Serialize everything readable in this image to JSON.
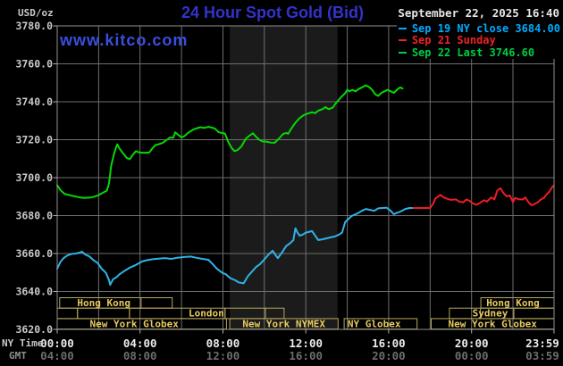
{
  "header": {
    "unit_label": "USD/oz",
    "title": "24 Hour Spot Gold (Bid)",
    "datetime": "September 22, 2025 16:40",
    "watermark": "www.kitco.com"
  },
  "legend": [
    {
      "id": "sep19",
      "label": "Sep 19 NY close 3684.00",
      "color": "#00aaff"
    },
    {
      "id": "sep21",
      "label": "Sep 21 Sunday",
      "color": "#ee2222"
    },
    {
      "id": "sep22",
      "label": "Sep 22 Last 3746.60",
      "color": "#00cc44"
    }
  ],
  "axes": {
    "ny_label": "NY Time",
    "gmt_label": "GMT",
    "y_tick_labels": [
      "3780.0",
      "3760.0",
      "3740.0",
      "3720.0",
      "3700.0",
      "3680.0",
      "3660.0",
      "3640.0",
      "3620.0"
    ]
  },
  "colors": {
    "band": "#1b1b1b",
    "grid": "#6e6e6e",
    "frame": "#8f8f8f",
    "tick": "#b0b0b0",
    "session_border": "#b5a75c",
    "session_text": "#e6cb5f"
  },
  "chart_data": {
    "type": "line",
    "title": "24 Hour Spot Gold (Bid)",
    "ylabel": "USD/oz",
    "ylim": [
      3620,
      3780
    ],
    "xlim": [
      0,
      23.983
    ],
    "x_unit": "hours, NY time",
    "grid": true,
    "legend_position": "top-right",
    "nymex_band_hours": [
      8.33,
      13.53
    ],
    "x_ticks": [
      {
        "t": 0,
        "ny": "00:00",
        "gmt": "04:00"
      },
      {
        "t": 4,
        "ny": "04:00",
        "gmt": "08:00"
      },
      {
        "t": 8,
        "ny": "08:00",
        "gmt": "12:00"
      },
      {
        "t": 12,
        "ny": "12:00",
        "gmt": "16:00"
      },
      {
        "t": 16,
        "ny": "16:00",
        "gmt": "20:00"
      },
      {
        "t": 20,
        "ny": "20:00",
        "gmt": "00:00"
      },
      {
        "t": 23.983,
        "ny": "23:59",
        "gmt": "03:59",
        "lx": 607
      }
    ],
    "series": [
      {
        "id": "sep19",
        "name": "Sep 19 NY close 3684.00",
        "color": "#2fb3e8",
        "points": [
          [
            0,
            3652
          ],
          [
            0.15,
            3655.5
          ],
          [
            0.3,
            3657.5
          ],
          [
            0.5,
            3659
          ],
          [
            0.7,
            3659.8
          ],
          [
            0.9,
            3660
          ],
          [
            1.1,
            3660.5
          ],
          [
            1.2,
            3661
          ],
          [
            1.35,
            3659.5
          ],
          [
            1.55,
            3658.5
          ],
          [
            1.75,
            3656.5
          ],
          [
            1.95,
            3655
          ],
          [
            2.15,
            3652
          ],
          [
            2.35,
            3649.8
          ],
          [
            2.5,
            3646
          ],
          [
            2.56,
            3643.5
          ],
          [
            2.7,
            3646.5
          ],
          [
            2.85,
            3647.4
          ],
          [
            3.0,
            3649
          ],
          [
            3.2,
            3650.5
          ],
          [
            3.5,
            3652.5
          ],
          [
            3.8,
            3654
          ],
          [
            4.1,
            3655.8
          ],
          [
            4.35,
            3656.5
          ],
          [
            4.6,
            3657
          ],
          [
            4.9,
            3657.3
          ],
          [
            5.2,
            3657.6
          ],
          [
            5.5,
            3657.2
          ],
          [
            5.8,
            3657.8
          ],
          [
            6.0,
            3658
          ],
          [
            6.2,
            3658.2
          ],
          [
            6.45,
            3658.4
          ],
          [
            6.7,
            3657.8
          ],
          [
            7.0,
            3657.2
          ],
          [
            7.3,
            3656.7
          ],
          [
            7.5,
            3654.5
          ],
          [
            7.7,
            3652.1
          ],
          [
            7.95,
            3650
          ],
          [
            8.15,
            3649
          ],
          [
            8.35,
            3647
          ],
          [
            8.6,
            3645.9
          ],
          [
            8.75,
            3644.8
          ],
          [
            9.0,
            3644.3
          ],
          [
            9.2,
            3648
          ],
          [
            9.6,
            3652.9
          ],
          [
            9.8,
            3654.5
          ],
          [
            10.0,
            3656.9
          ],
          [
            10.2,
            3659.5
          ],
          [
            10.4,
            3661.5
          ],
          [
            10.55,
            3659
          ],
          [
            10.65,
            3657.6
          ],
          [
            10.85,
            3660.5
          ],
          [
            11.05,
            3663.9
          ],
          [
            11.25,
            3665.5
          ],
          [
            11.4,
            3667.1
          ],
          [
            11.5,
            3673.3
          ],
          [
            11.6,
            3671
          ],
          [
            11.7,
            3669.4
          ],
          [
            11.85,
            3670
          ],
          [
            12.0,
            3671
          ],
          [
            12.3,
            3671.8
          ],
          [
            12.45,
            3669.5
          ],
          [
            12.6,
            3667.1
          ],
          [
            12.8,
            3667.5
          ],
          [
            13.0,
            3668
          ],
          [
            13.2,
            3668.5
          ],
          [
            13.4,
            3669
          ],
          [
            13.6,
            3670
          ],
          [
            13.75,
            3671
          ],
          [
            13.9,
            3676.5
          ],
          [
            14.2,
            3679.7
          ],
          [
            14.5,
            3681.2
          ],
          [
            14.7,
            3682.5
          ],
          [
            14.9,
            3683.5
          ],
          [
            15.1,
            3683
          ],
          [
            15.3,
            3682.5
          ],
          [
            15.5,
            3683.8
          ],
          [
            15.9,
            3684.2
          ],
          [
            16.1,
            3682.5
          ],
          [
            16.25,
            3680.7
          ],
          [
            16.4,
            3681.5
          ],
          [
            16.55,
            3682
          ],
          [
            16.8,
            3683.5
          ],
          [
            17.0,
            3684
          ],
          [
            17.2,
            3684
          ]
        ]
      },
      {
        "id": "sep21",
        "name": "Sep 21 Sunday",
        "color": "#ed1c24",
        "points": [
          [
            17.2,
            3684
          ],
          [
            18.0,
            3684
          ],
          [
            18.1,
            3685.5
          ],
          [
            18.15,
            3686.2
          ],
          [
            18.25,
            3689
          ],
          [
            18.5,
            3690.9
          ],
          [
            18.65,
            3689.6
          ],
          [
            18.8,
            3689
          ],
          [
            19.0,
            3688.3
          ],
          [
            19.25,
            3688.5
          ],
          [
            19.4,
            3687.4
          ],
          [
            19.6,
            3687
          ],
          [
            19.75,
            3688.5
          ],
          [
            19.9,
            3687.8
          ],
          [
            20.05,
            3686.5
          ],
          [
            20.25,
            3685.7
          ],
          [
            20.45,
            3687
          ],
          [
            20.6,
            3688.1
          ],
          [
            20.75,
            3687.4
          ],
          [
            20.95,
            3689.6
          ],
          [
            21.1,
            3688.5
          ],
          [
            21.25,
            3693.3
          ],
          [
            21.4,
            3694.4
          ],
          [
            21.55,
            3691.7
          ],
          [
            21.7,
            3690.1
          ],
          [
            21.85,
            3690.6
          ],
          [
            22.0,
            3687
          ],
          [
            22.1,
            3689.3
          ],
          [
            22.3,
            3688.5
          ],
          [
            22.5,
            3688.5
          ],
          [
            22.6,
            3689.6
          ],
          [
            22.75,
            3687
          ],
          [
            22.9,
            3685.4
          ],
          [
            23.05,
            3686.2
          ],
          [
            23.2,
            3687
          ],
          [
            23.35,
            3688.5
          ],
          [
            23.5,
            3689.3
          ],
          [
            23.6,
            3690.9
          ],
          [
            23.75,
            3692.5
          ],
          [
            23.88,
            3694.8
          ],
          [
            23.97,
            3695.9
          ]
        ]
      },
      {
        "id": "sep22",
        "name": "Sep 22 Last 3746.60",
        "color": "#05d805",
        "points": [
          [
            0,
            3696
          ],
          [
            0.15,
            3693.5
          ],
          [
            0.35,
            3691.5
          ],
          [
            0.7,
            3690.5
          ],
          [
            1.0,
            3689.8
          ],
          [
            1.3,
            3689.3
          ],
          [
            1.6,
            3689.5
          ],
          [
            1.8,
            3690
          ],
          [
            2.0,
            3690.8
          ],
          [
            2.2,
            3692
          ],
          [
            2.4,
            3693.2
          ],
          [
            2.5,
            3697
          ],
          [
            2.6,
            3706
          ],
          [
            2.75,
            3713
          ],
          [
            2.9,
            3717.6
          ],
          [
            3.0,
            3715.5
          ],
          [
            3.2,
            3712.5
          ],
          [
            3.35,
            3710.5
          ],
          [
            3.5,
            3709.7
          ],
          [
            3.65,
            3712
          ],
          [
            3.8,
            3714
          ],
          [
            3.95,
            3713.3
          ],
          [
            4.2,
            3713.1
          ],
          [
            4.45,
            3713.3
          ],
          [
            4.6,
            3715.5
          ],
          [
            4.75,
            3717.2
          ],
          [
            4.9,
            3717.6
          ],
          [
            5.1,
            3718.4
          ],
          [
            5.3,
            3720
          ],
          [
            5.45,
            3721.2
          ],
          [
            5.6,
            3721
          ],
          [
            5.7,
            3723.9
          ],
          [
            5.85,
            3722.5
          ],
          [
            6.0,
            3721.2
          ],
          [
            6.15,
            3722
          ],
          [
            6.35,
            3723.9
          ],
          [
            6.6,
            3725.5
          ],
          [
            6.9,
            3726.6
          ],
          [
            7.1,
            3726.2
          ],
          [
            7.3,
            3726.8
          ],
          [
            7.6,
            3726
          ],
          [
            7.8,
            3723.9
          ],
          [
            8.0,
            3723.5
          ],
          [
            8.1,
            3723.2
          ],
          [
            8.25,
            3719
          ],
          [
            8.4,
            3716
          ],
          [
            8.55,
            3714
          ],
          [
            8.7,
            3714.5
          ],
          [
            8.9,
            3716.5
          ],
          [
            9.1,
            3720.5
          ],
          [
            9.3,
            3722.3
          ],
          [
            9.45,
            3723.4
          ],
          [
            9.6,
            3721.5
          ],
          [
            9.75,
            3720
          ],
          [
            9.9,
            3719.1
          ],
          [
            10.1,
            3719
          ],
          [
            10.3,
            3718.5
          ],
          [
            10.5,
            3718.4
          ],
          [
            10.7,
            3720.5
          ],
          [
            10.9,
            3723
          ],
          [
            11.05,
            3723.6
          ],
          [
            11.15,
            3723.1
          ],
          [
            11.3,
            3725.9
          ],
          [
            11.5,
            3729
          ],
          [
            11.7,
            3731.4
          ],
          [
            11.9,
            3733
          ],
          [
            12.1,
            3733.8
          ],
          [
            12.3,
            3734.5
          ],
          [
            12.45,
            3734
          ],
          [
            12.6,
            3735.3
          ],
          [
            12.8,
            3736.1
          ],
          [
            12.95,
            3737.2
          ],
          [
            13.1,
            3736.1
          ],
          [
            13.3,
            3736.9
          ],
          [
            13.45,
            3739.2
          ],
          [
            13.7,
            3742.4
          ],
          [
            13.9,
            3744.5
          ],
          [
            14.0,
            3746.3
          ],
          [
            14.1,
            3745.5
          ],
          [
            14.25,
            3746.3
          ],
          [
            14.4,
            3745.5
          ],
          [
            14.55,
            3746.7
          ],
          [
            14.75,
            3747.8
          ],
          [
            14.9,
            3748.6
          ],
          [
            15.05,
            3747.8
          ],
          [
            15.2,
            3746.3
          ],
          [
            15.35,
            3743.9
          ],
          [
            15.5,
            3743.1
          ],
          [
            15.65,
            3744.7
          ],
          [
            15.8,
            3745.5
          ],
          [
            15.95,
            3746.3
          ],
          [
            16.1,
            3745.5
          ],
          [
            16.25,
            3744.7
          ],
          [
            16.4,
            3746.3
          ],
          [
            16.55,
            3747.6
          ],
          [
            16.67,
            3747.0
          ]
        ]
      }
    ],
    "sessions": {
      "rows": [
        {
          "boxes": [
            {
              "t0": 0.12,
              "t1": 5.55,
              "label": "Hong Kong",
              "label_t": 2.25,
              "dividers": [
                4.05
              ]
            },
            {
              "t0": 20.45,
              "t1": 23.983,
              "label": "Hong Kong",
              "label_t": 22.0
            }
          ]
        },
        {
          "boxes": [
            {
              "t0": 0,
              "t1": 0.98
            },
            {
              "t0": 0.98,
              "t1": 3.49
            },
            {
              "t0": 3.49,
              "t1": 8.1,
              "label": "London",
              "label_t": 7.2
            },
            {
              "t0": 8.1,
              "t1": 10.05
            },
            {
              "t0": 10.05,
              "t1": 10.95
            },
            {
              "t0": 18.93,
              "t1": 23.983,
              "label": "Sydney",
              "label_t": 20.9,
              "dividers": [
                20.43,
                22.04
              ]
            }
          ]
        },
        {
          "boxes": [
            {
              "t0": 0,
              "t1": 8.17,
              "label": "New York Globex",
              "label_t": 3.72
            },
            {
              "t0": 8.33,
              "t1": 13.56,
              "label": "New York NYMEX"
            },
            {
              "t0": 13.85,
              "t1": 17.37,
              "label": "NY Globex",
              "label_t": 15.3
            },
            {
              "t0": 18.05,
              "t1": 23.983,
              "label": "New York Globex"
            }
          ]
        }
      ]
    }
  }
}
